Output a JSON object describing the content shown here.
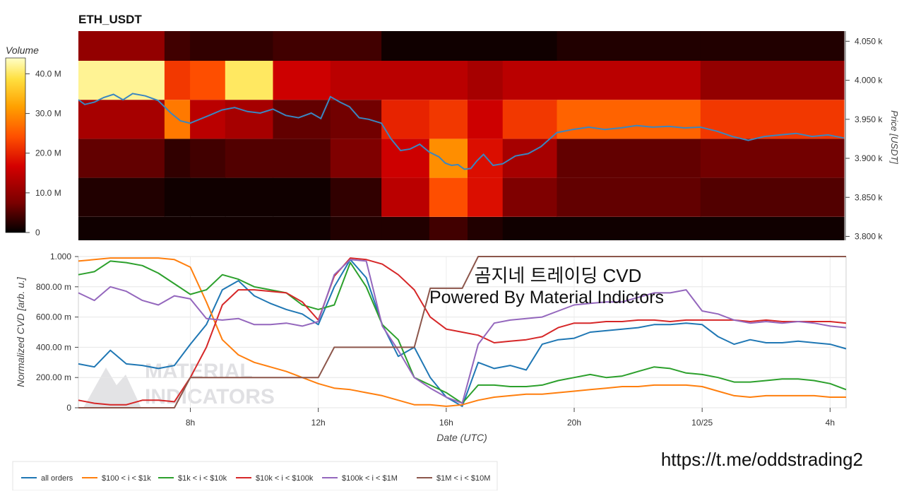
{
  "page": {
    "footer_link": "https://t.me/oddstrading2",
    "watermark_line1": "MATERIAL",
    "watermark_line2": "INDICATORS"
  },
  "colors": {
    "background": "#ffffff",
    "heatmap_scale": [
      "#000000",
      "#7a0000",
      "#d40000",
      "#ff5000",
      "#ffa000",
      "#ffe040",
      "#ffffc8"
    ],
    "price_line": "#3b86c0",
    "axis": "#444444"
  },
  "chart_data": [
    {
      "type": "heatmap",
      "title": "ETH_USDT",
      "ylabel": "Price [USDT]",
      "y_ticks": [
        "3.800 k",
        "3.850 k",
        "3.900 k",
        "3.950 k",
        "4.000 k",
        "4.050 k"
      ],
      "y_tick_values": [
        3800,
        3850,
        3900,
        3950,
        4000,
        4050
      ],
      "ylim": [
        3795,
        4063
      ],
      "x_range_hours": [
        4.5,
        28.5
      ],
      "price_bins": [
        3800,
        3850,
        3900,
        3950,
        4000,
        4050
      ],
      "colorbar": {
        "label": "Volume",
        "ticks": [
          "0",
          "10.0 M",
          "20.0 M",
          "30.0 M",
          "40.0 M"
        ],
        "tick_values": [
          0,
          10,
          20,
          30,
          40
        ],
        "range": [
          0,
          44
        ]
      },
      "segments": [
        {
          "start": 4.5,
          "end": 7.2,
          "volumes": [
            1,
            2,
            6,
            12,
            42,
            10
          ]
        },
        {
          "start": 7.2,
          "end": 8.0,
          "volumes": [
            1,
            1,
            3,
            28,
            22,
            4
          ]
        },
        {
          "start": 8.0,
          "end": 9.1,
          "volumes": [
            1,
            1,
            4,
            14,
            24,
            3
          ]
        },
        {
          "start": 9.1,
          "end": 10.6,
          "volumes": [
            1,
            1,
            5,
            12,
            40,
            3
          ]
        },
        {
          "start": 10.6,
          "end": 12.4,
          "volumes": [
            1,
            1,
            5,
            6,
            16,
            4
          ]
        },
        {
          "start": 12.4,
          "end": 14.0,
          "volumes": [
            2,
            3,
            8,
            7,
            14,
            4
          ]
        },
        {
          "start": 14.0,
          "end": 15.5,
          "volumes": [
            2,
            14,
            16,
            20,
            14,
            1
          ]
        },
        {
          "start": 15.5,
          "end": 16.7,
          "volumes": [
            4,
            24,
            30,
            22,
            14,
            1
          ]
        },
        {
          "start": 16.7,
          "end": 17.8,
          "volumes": [
            2,
            18,
            18,
            16,
            12,
            1
          ]
        },
        {
          "start": 17.8,
          "end": 19.5,
          "volumes": [
            1,
            8,
            12,
            22,
            14,
            1
          ]
        },
        {
          "start": 19.5,
          "end": 24.0,
          "volumes": [
            1,
            6,
            6,
            26,
            14,
            2
          ]
        },
        {
          "start": 24.0,
          "end": 28.5,
          "volumes": [
            1,
            5,
            7,
            22,
            10,
            2
          ]
        }
      ],
      "price_series": {
        "name": "price",
        "x": [
          4.5,
          4.7,
          5.0,
          5.3,
          5.6,
          5.9,
          6.2,
          6.6,
          7.0,
          7.4,
          7.7,
          8.0,
          8.3,
          8.6,
          9.0,
          9.4,
          9.8,
          10.2,
          10.6,
          11.0,
          11.4,
          11.8,
          12.1,
          12.4,
          12.7,
          13.0,
          13.3,
          13.6,
          14.0,
          14.3,
          14.6,
          14.9,
          15.2,
          15.5,
          15.8,
          16.0,
          16.2,
          16.4,
          16.6,
          16.8,
          17.0,
          17.2,
          17.5,
          17.8,
          18.2,
          18.6,
          19.0,
          19.5,
          20.0,
          20.5,
          21.0,
          21.5,
          22.0,
          22.5,
          23.0,
          23.5,
          24.0,
          24.5,
          25.0,
          25.5,
          26.0,
          26.5,
          27.0,
          27.5,
          28.0,
          28.5
        ],
        "values": [
          3975,
          3969,
          3972,
          3978,
          3982,
          3975,
          3983,
          3980,
          3974,
          3958,
          3948,
          3945,
          3950,
          3955,
          3962,
          3965,
          3960,
          3958,
          3963,
          3955,
          3952,
          3958,
          3951,
          3979,
          3972,
          3966,
          3952,
          3950,
          3945,
          3925,
          3910,
          3912,
          3918,
          3908,
          3902,
          3894,
          3891,
          3892,
          3886,
          3887,
          3897,
          3905,
          3891,
          3893,
          3903,
          3906,
          3915,
          3933,
          3937,
          3940,
          3937,
          3939,
          3942,
          3940,
          3941,
          3939,
          3940,
          3935,
          3928,
          3923,
          3928,
          3930,
          3932,
          3928,
          3930,
          3926
        ]
      }
    },
    {
      "type": "line",
      "title": "",
      "xlabel": "Date (UTC)",
      "ylabel": "Normalized CVD [arb. u.]",
      "x_ticks": [
        "8h",
        "12h",
        "16h",
        "20h",
        "10/25",
        "4h"
      ],
      "x_tick_values": [
        8,
        12,
        16,
        20,
        24,
        28
      ],
      "xlim": [
        4.5,
        28.5
      ],
      "y_ticks": [
        "0",
        "200.00 m",
        "400.00 m",
        "600.00 m",
        "800.00 m",
        "1.000"
      ],
      "y_tick_values": [
        0,
        0.2,
        0.4,
        0.6,
        0.8,
        1.0
      ],
      "ylim": [
        0,
        1.0
      ],
      "annotation_lines": [
        "곰지네 트레이딩 CVD",
        "Powered By Material Indictors"
      ],
      "x": [
        4.5,
        5.0,
        5.5,
        6.0,
        6.5,
        7.0,
        7.5,
        8.0,
        8.5,
        9.0,
        9.5,
        10.0,
        10.5,
        11.0,
        11.5,
        12.0,
        12.5,
        13.0,
        13.5,
        14.0,
        14.5,
        15.0,
        15.5,
        16.0,
        16.5,
        17.0,
        17.5,
        18.0,
        18.5,
        19.0,
        19.5,
        20.0,
        20.5,
        21.0,
        21.5,
        22.0,
        22.5,
        23.0,
        23.5,
        24.0,
        24.5,
        25.0,
        25.5,
        26.0,
        26.5,
        27.0,
        27.5,
        28.0,
        28.5
      ],
      "series": [
        {
          "name": "all orders",
          "color": "#1f77b4",
          "values": [
            0.29,
            0.27,
            0.38,
            0.29,
            0.28,
            0.26,
            0.28,
            0.42,
            0.55,
            0.78,
            0.84,
            0.74,
            0.69,
            0.65,
            0.62,
            0.55,
            0.8,
            0.98,
            0.86,
            0.55,
            0.34,
            0.4,
            0.2,
            0.07,
            0.01,
            0.3,
            0.26,
            0.28,
            0.25,
            0.42,
            0.45,
            0.46,
            0.5,
            0.51,
            0.52,
            0.53,
            0.55,
            0.55,
            0.56,
            0.55,
            0.47,
            0.42,
            0.45,
            0.43,
            0.43,
            0.44,
            0.43,
            0.42,
            0.39
          ]
        },
        {
          "name": "$100 < i < $1k",
          "color": "#ff7f0e",
          "values": [
            0.97,
            0.98,
            0.99,
            0.99,
            0.99,
            0.99,
            0.98,
            0.93,
            0.7,
            0.45,
            0.35,
            0.3,
            0.27,
            0.24,
            0.2,
            0.16,
            0.13,
            0.12,
            0.1,
            0.08,
            0.05,
            0.02,
            0.02,
            0.01,
            0.02,
            0.05,
            0.07,
            0.08,
            0.09,
            0.09,
            0.1,
            0.11,
            0.12,
            0.13,
            0.14,
            0.14,
            0.15,
            0.15,
            0.15,
            0.14,
            0.11,
            0.08,
            0.07,
            0.08,
            0.08,
            0.08,
            0.08,
            0.07,
            0.07
          ]
        },
        {
          "name": "$1k < i < $10k",
          "color": "#2ca02c",
          "values": [
            0.88,
            0.9,
            0.97,
            0.96,
            0.94,
            0.89,
            0.82,
            0.75,
            0.78,
            0.88,
            0.85,
            0.8,
            0.78,
            0.76,
            0.68,
            0.65,
            0.68,
            0.96,
            0.8,
            0.55,
            0.45,
            0.2,
            0.15,
            0.1,
            0.03,
            0.15,
            0.15,
            0.14,
            0.14,
            0.15,
            0.18,
            0.2,
            0.22,
            0.2,
            0.21,
            0.24,
            0.27,
            0.26,
            0.23,
            0.22,
            0.2,
            0.17,
            0.17,
            0.18,
            0.19,
            0.19,
            0.18,
            0.16,
            0.12
          ]
        },
        {
          "name": "$10k < i < $100k",
          "color": "#d62728",
          "values": [
            0.05,
            0.03,
            0.02,
            0.02,
            0.05,
            0.05,
            0.04,
            0.2,
            0.4,
            0.68,
            0.78,
            0.78,
            0.77,
            0.76,
            0.7,
            0.58,
            0.87,
            0.99,
            0.98,
            0.95,
            0.88,
            0.78,
            0.6,
            0.52,
            0.5,
            0.48,
            0.43,
            0.44,
            0.45,
            0.47,
            0.53,
            0.56,
            0.56,
            0.57,
            0.57,
            0.58,
            0.58,
            0.57,
            0.58,
            0.58,
            0.58,
            0.58,
            0.57,
            0.58,
            0.57,
            0.57,
            0.57,
            0.57,
            0.56
          ]
        },
        {
          "name": "$100k < i < $1M",
          "color": "#9467bd",
          "values": [
            0.76,
            0.71,
            0.8,
            0.77,
            0.71,
            0.68,
            0.74,
            0.72,
            0.59,
            0.58,
            0.59,
            0.55,
            0.55,
            0.56,
            0.54,
            0.57,
            0.88,
            0.98,
            0.97,
            0.54,
            0.38,
            0.2,
            0.13,
            0.07,
            0.03,
            0.42,
            0.56,
            0.58,
            0.59,
            0.6,
            0.64,
            0.68,
            0.69,
            0.7,
            0.7,
            0.73,
            0.76,
            0.76,
            0.78,
            0.64,
            0.62,
            0.58,
            0.56,
            0.57,
            0.56,
            0.57,
            0.56,
            0.54,
            0.53
          ]
        },
        {
          "name": "$1M < i < $10M",
          "color": "#8c564b",
          "values": [
            0.0,
            0.0,
            0.0,
            0.0,
            0.0,
            0.0,
            0.0,
            0.2,
            0.2,
            0.2,
            0.2,
            0.2,
            0.2,
            0.2,
            0.2,
            0.2,
            0.4,
            0.4,
            0.4,
            0.4,
            0.4,
            0.4,
            0.79,
            0.79,
            0.79,
            1.0,
            1.0,
            1.0,
            1.0,
            1.0,
            1.0,
            1.0,
            1.0,
            1.0,
            1.0,
            1.0,
            1.0,
            1.0,
            1.0,
            1.0,
            1.0,
            1.0,
            1.0,
            1.0,
            1.0,
            1.0,
            1.0,
            1.0,
            1.0
          ]
        }
      ],
      "legend_position": "bottom-left"
    }
  ]
}
